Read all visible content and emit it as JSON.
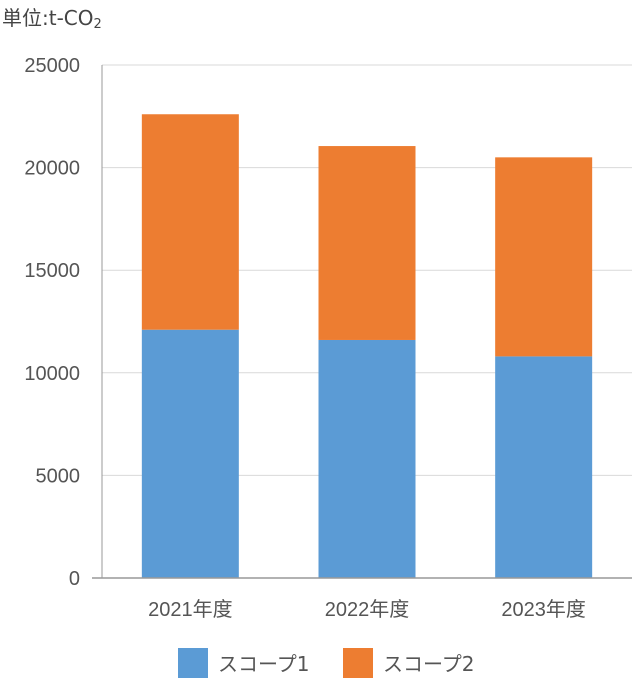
{
  "unit": {
    "prefix": "単位:t-CO",
    "subscript": "2"
  },
  "colors": {
    "series1": "#5B9BD5",
    "series2": "#ED7D31",
    "grid": "#d9d9d9",
    "axis": "#999999"
  },
  "chart_data": {
    "type": "bar",
    "stacked": true,
    "categories": [
      "2021年度",
      "2022年度",
      "2023年度"
    ],
    "series": [
      {
        "name": "スコープ1",
        "values": [
          12100,
          11600,
          10800
        ]
      },
      {
        "name": "スコープ2",
        "values": [
          10500,
          9450,
          9700
        ]
      }
    ],
    "ylim": [
      0,
      25000
    ],
    "yticks": [
      0,
      5000,
      10000,
      15000,
      20000,
      25000
    ],
    "grid": true,
    "legend": "bottom"
  }
}
